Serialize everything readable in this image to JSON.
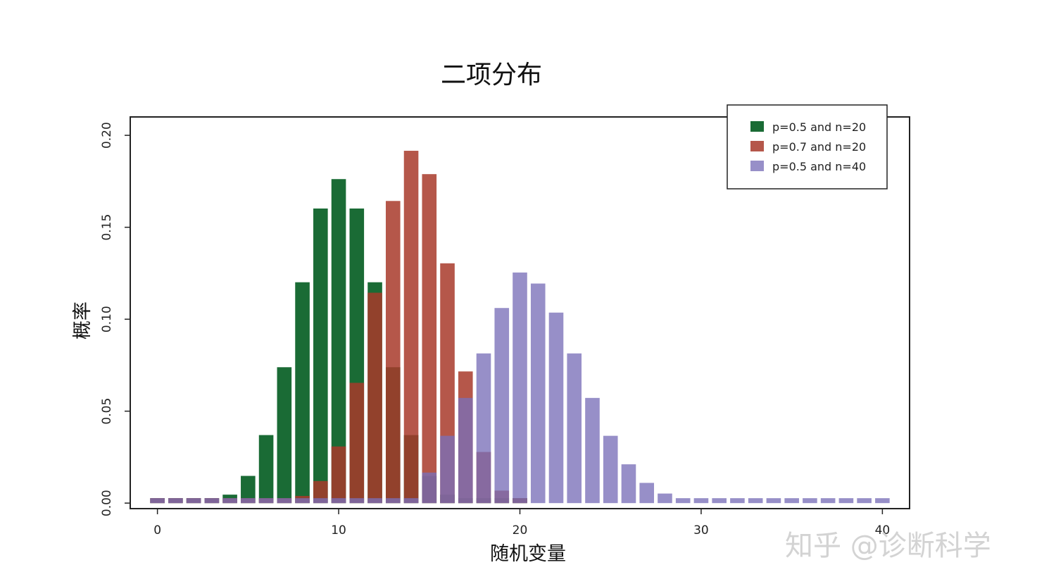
{
  "chart_data": {
    "type": "bar",
    "title": "二项分布",
    "xlabel": "随机变量",
    "ylabel": "概率",
    "xlim": [
      -1.5,
      41.5
    ],
    "ylim": [
      -0.003,
      0.21
    ],
    "xticks": [
      0,
      10,
      20,
      30,
      40
    ],
    "yticks": [
      0.0,
      0.05,
      0.1,
      0.15,
      0.2
    ],
    "ytick_labels": [
      "0.00",
      "0.05",
      "0.10",
      "0.15",
      "0.20"
    ],
    "grid": false,
    "legend_position": "top-right",
    "series": [
      {
        "name": "p=0.5 and n=20",
        "color": "#1a6b35",
        "x": [
          0,
          1,
          2,
          3,
          4,
          5,
          6,
          7,
          8,
          9,
          10,
          11,
          12,
          13,
          14,
          15,
          16,
          17,
          18,
          19,
          20
        ],
        "values": [
          0.0,
          0.0,
          0.0002,
          0.0011,
          0.0046,
          0.0148,
          0.037,
          0.0739,
          0.1201,
          0.1602,
          0.1762,
          0.1602,
          0.1201,
          0.0739,
          0.037,
          0.0148,
          0.0046,
          0.0011,
          0.0002,
          0.0,
          0.0
        ]
      },
      {
        "name": "p=0.7 and n=20",
        "color": "#a8392a",
        "x": [
          0,
          1,
          2,
          3,
          4,
          5,
          6,
          7,
          8,
          9,
          10,
          11,
          12,
          13,
          14,
          15,
          16,
          17,
          18,
          19,
          20
        ],
        "values": [
          0.0,
          0.0,
          0.0,
          0.0,
          0.0,
          0.0,
          0.0002,
          0.001,
          0.0039,
          0.012,
          0.0308,
          0.0654,
          0.1144,
          0.1643,
          0.1916,
          0.1789,
          0.1304,
          0.0716,
          0.0278,
          0.0068,
          0.0008
        ]
      },
      {
        "name": "p=0.5 and n=40",
        "color": "#7a70b8",
        "x": [
          0,
          1,
          2,
          3,
          4,
          5,
          6,
          7,
          8,
          9,
          10,
          11,
          12,
          13,
          14,
          15,
          16,
          17,
          18,
          19,
          20,
          21,
          22,
          23,
          24,
          25,
          26,
          27,
          28,
          29,
          30,
          31,
          32,
          33,
          34,
          35,
          36,
          37,
          38,
          39,
          40
        ],
        "values": [
          0.0,
          0.0,
          0.0,
          0.0,
          0.0,
          0.0,
          0.0,
          0.0,
          0.0,
          0.0,
          0.0,
          0.0,
          0.0003,
          0.0008,
          0.0021,
          0.0166,
          0.0366,
          0.0572,
          0.0814,
          0.1061,
          0.1254,
          0.1194,
          0.1036,
          0.0814,
          0.0572,
          0.0366,
          0.0211,
          0.011,
          0.0052,
          0.0,
          0.0,
          0.0,
          0.0,
          0.0,
          0.0,
          0.0,
          0.0,
          0.0,
          0.0,
          0.0,
          0.0
        ]
      }
    ]
  },
  "watermark": "知乎 @诊断科学"
}
